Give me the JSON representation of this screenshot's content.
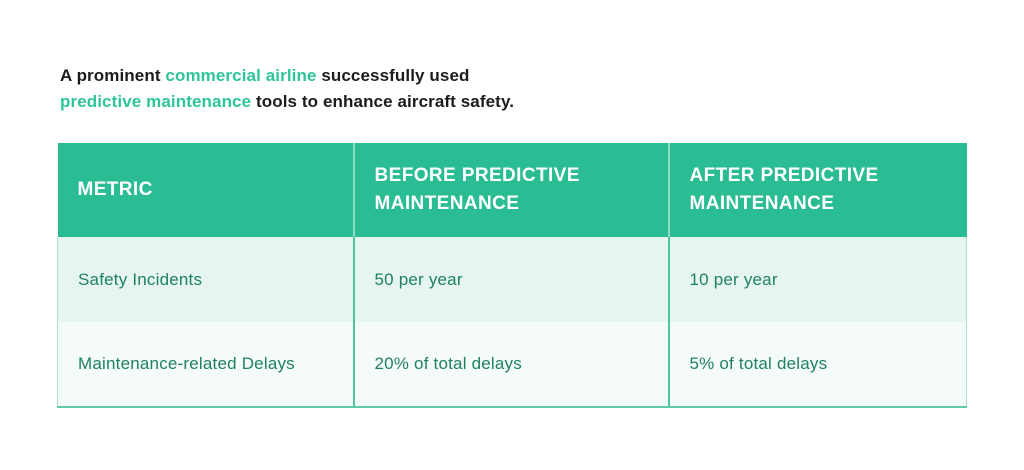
{
  "intro": {
    "segments": [
      {
        "text": "A prominent ",
        "style": "dark"
      },
      {
        "text": "commercial airline",
        "style": "green"
      },
      {
        "text": " successfully used",
        "style": "dark"
      },
      {
        "text": "predictive maintenance",
        "style": "green"
      },
      {
        "text": " tools to enhance aircraft safety.",
        "style": "dark"
      }
    ]
  },
  "table": {
    "headers": {
      "metric": "METRIC",
      "before": "BEFORE PREDICTIVE MAINTENANCE",
      "after": "AFTER PREDICTIVE MAINTENANCE"
    },
    "rows": [
      {
        "metric": "Safety Incidents",
        "before": "50 per year",
        "after": "10 per year"
      },
      {
        "metric": "Maintenance-related Delays",
        "before": "20% of total delays",
        "after": "5% of total delays"
      }
    ]
  },
  "colors": {
    "header_background": "#2abc92",
    "header_text": "#ffffff",
    "row_odd_background": "#e6f6ef",
    "row_even_background": "#f5fbf8",
    "body_text": "#1f8163",
    "intro_text": "#1c1c1c",
    "intro_highlight": "#2ec59a",
    "header_divider": "#8edcc4",
    "body_divider": "#4cc5a0",
    "outer_border": "#a9e2cf"
  }
}
